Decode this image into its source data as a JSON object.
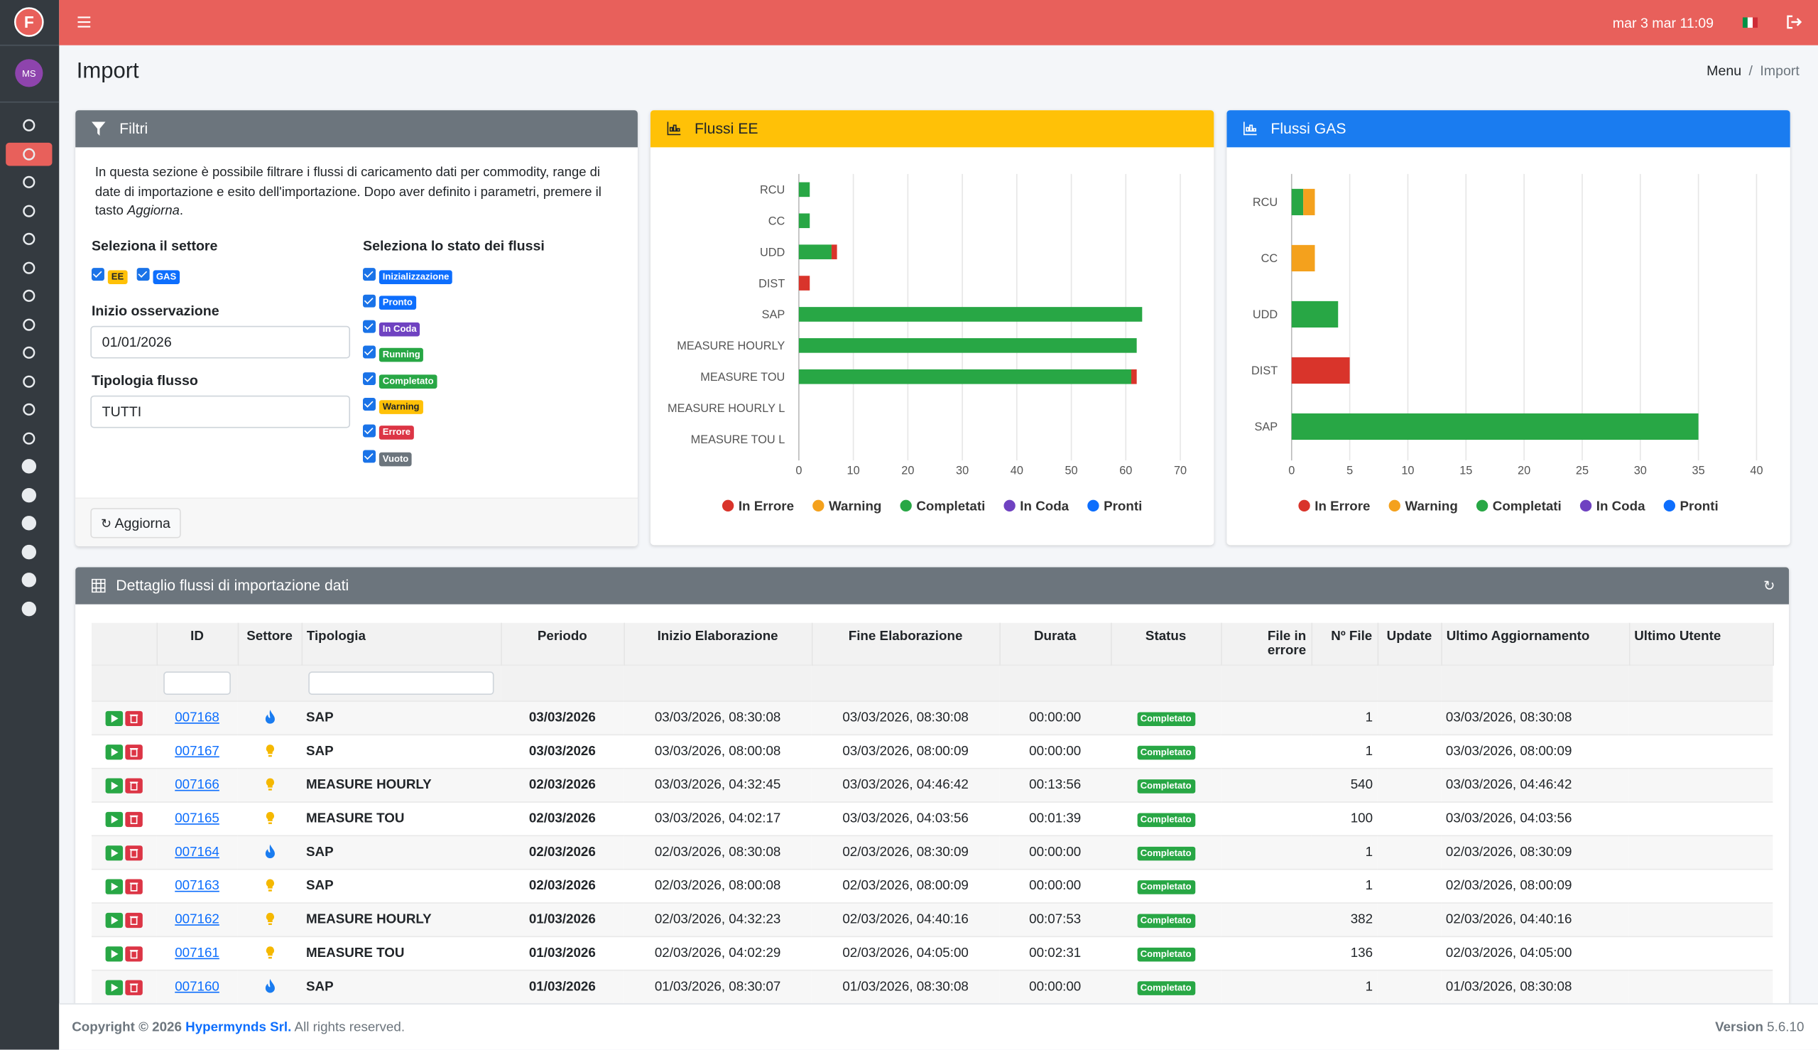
{
  "header": {
    "datetime": "mar 3 mar 11:09",
    "avatar": "MS"
  },
  "page": {
    "title": "Import",
    "breadcrumb": [
      "Menu",
      "Import"
    ]
  },
  "filters": {
    "title": "Filtri",
    "intro": [
      "In questa sezione è possibile filtrare i flussi di caricamento dati per commodity, range di date di importazione e esito dell'importazione. Dopo aver definito i parametri, premere il tasto ",
      "Aggiorna",
      "."
    ],
    "settore_label": "Seleziona il settore",
    "settori": [
      {
        "label": "EE",
        "color": "#ffc107",
        "text_color": "#212529"
      },
      {
        "label": "GAS",
        "color": "#0d6efd",
        "text_color": "#ffffff"
      }
    ],
    "stato_label": "Seleziona lo stato dei flussi",
    "stati": [
      {
        "label": "Inizializzazione",
        "color": "#0d6efd"
      },
      {
        "label": "Pronto",
        "color": "#0d6efd"
      },
      {
        "label": "In Coda",
        "color": "#6f42c1"
      },
      {
        "label": "Running",
        "color": "#28a745"
      },
      {
        "label": "Completato",
        "color": "#28a745"
      },
      {
        "label": "Warning",
        "color": "#ffc107"
      },
      {
        "label": "Errore",
        "color": "#dc3545"
      },
      {
        "label": "Vuoto",
        "color": "#6c757d"
      }
    ],
    "inizio_label": "Inizio osservazione",
    "inizio_value": "01/01/2026",
    "tipologia_label": "Tipologia flusso",
    "tipologia_value": "TUTTI",
    "button": "Aggiorna"
  },
  "chart_data": [
    {
      "type": "bar",
      "orientation": "horizontal",
      "stacked": true,
      "title": "Flussi EE",
      "header_color": "#ffc107",
      "categories": [
        "RCU",
        "CC",
        "UDD",
        "DIST",
        "SAP",
        "MEASURE HOURLY",
        "MEASURE TOU",
        "MEASURE HOURLY L",
        "MEASURE TOU L"
      ],
      "series": [
        {
          "name": "In Errore",
          "color": "#d9342b",
          "values": [
            0,
            0,
            1,
            2,
            0,
            0,
            1,
            0,
            0
          ]
        },
        {
          "name": "Warning",
          "color": "#f4a11d",
          "values": [
            0,
            0,
            0,
            0,
            0,
            0,
            0,
            0,
            0
          ]
        },
        {
          "name": "Completati",
          "color": "#28a745",
          "values": [
            2,
            2,
            6,
            0,
            63,
            62,
            61,
            0,
            0
          ]
        },
        {
          "name": "In Coda",
          "color": "#6f42c1",
          "values": [
            0,
            0,
            0,
            0,
            0,
            0,
            0,
            0,
            0
          ]
        },
        {
          "name": "Pronti",
          "color": "#0d6efd",
          "values": [
            0,
            0,
            0,
            0,
            0,
            0,
            0,
            0,
            0
          ]
        }
      ],
      "xlim": [
        0,
        70
      ],
      "xticks": [
        0,
        10,
        20,
        30,
        40,
        50,
        60,
        70
      ],
      "grid": true,
      "legend": "bottom"
    },
    {
      "type": "bar",
      "orientation": "horizontal",
      "stacked": true,
      "title": "Flussi GAS",
      "header_color": "#1a7cf0",
      "categories": [
        "RCU",
        "CC",
        "UDD",
        "DIST",
        "SAP"
      ],
      "series": [
        {
          "name": "In Errore",
          "color": "#d9342b",
          "values": [
            0,
            0,
            0,
            5,
            0
          ]
        },
        {
          "name": "Warning",
          "color": "#f4a11d",
          "values": [
            1,
            2,
            0,
            0,
            0
          ]
        },
        {
          "name": "Completati",
          "color": "#28a745",
          "values": [
            1,
            0,
            4,
            0,
            35
          ]
        },
        {
          "name": "In Coda",
          "color": "#6f42c1",
          "values": [
            0,
            0,
            0,
            0,
            0
          ]
        },
        {
          "name": "Pronti",
          "color": "#0d6efd",
          "values": [
            0,
            0,
            0,
            0,
            0
          ]
        }
      ],
      "xlim": [
        0,
        40
      ],
      "xticks": [
        0,
        5,
        10,
        15,
        20,
        25,
        30,
        35,
        40
      ],
      "grid": true,
      "legend": "bottom"
    }
  ],
  "table": {
    "title": "Dettaglio flussi di importazione dati",
    "columns": [
      "ID",
      "Settore",
      "Tipologia",
      "Periodo",
      "Inizio Elaborazione",
      "Fine Elaborazione",
      "Durata",
      "Status",
      "File in errore",
      "Nº File",
      "Update",
      "Ultimo Aggiornamento",
      "Ultimo Utente"
    ],
    "rows": [
      {
        "id": "007168",
        "settore": "gas",
        "tipologia": "SAP",
        "periodo": "03/03/2026",
        "inizio": "03/03/2026, 08:30:08",
        "fine": "03/03/2026, 08:30:08",
        "durata": "00:00:00",
        "status": "Completato",
        "n_file": 1,
        "ultimo": "03/03/2026, 08:30:08"
      },
      {
        "id": "007167",
        "settore": "ee",
        "tipologia": "SAP",
        "periodo": "03/03/2026",
        "inizio": "03/03/2026, 08:00:08",
        "fine": "03/03/2026, 08:00:09",
        "durata": "00:00:00",
        "status": "Completato",
        "n_file": 1,
        "ultimo": "03/03/2026, 08:00:09"
      },
      {
        "id": "007166",
        "settore": "ee",
        "tipologia": "MEASURE HOURLY",
        "periodo": "02/03/2026",
        "inizio": "03/03/2026, 04:32:45",
        "fine": "03/03/2026, 04:46:42",
        "durata": "00:13:56",
        "status": "Completato",
        "n_file": 540,
        "ultimo": "03/03/2026, 04:46:42"
      },
      {
        "id": "007165",
        "settore": "ee",
        "tipologia": "MEASURE TOU",
        "periodo": "02/03/2026",
        "inizio": "03/03/2026, 04:02:17",
        "fine": "03/03/2026, 04:03:56",
        "durata": "00:01:39",
        "status": "Completato",
        "n_file": 100,
        "ultimo": "03/03/2026, 04:03:56"
      },
      {
        "id": "007164",
        "settore": "gas",
        "tipologia": "SAP",
        "periodo": "02/03/2026",
        "inizio": "02/03/2026, 08:30:08",
        "fine": "02/03/2026, 08:30:09",
        "durata": "00:00:00",
        "status": "Completato",
        "n_file": 1,
        "ultimo": "02/03/2026, 08:30:09"
      },
      {
        "id": "007163",
        "settore": "ee",
        "tipologia": "SAP",
        "periodo": "02/03/2026",
        "inizio": "02/03/2026, 08:00:08",
        "fine": "02/03/2026, 08:00:09",
        "durata": "00:00:00",
        "status": "Completato",
        "n_file": 1,
        "ultimo": "02/03/2026, 08:00:09"
      },
      {
        "id": "007162",
        "settore": "ee",
        "tipologia": "MEASURE HOURLY",
        "periodo": "01/03/2026",
        "inizio": "02/03/2026, 04:32:23",
        "fine": "02/03/2026, 04:40:16",
        "durata": "00:07:53",
        "status": "Completato",
        "n_file": 382,
        "ultimo": "02/03/2026, 04:40:16"
      },
      {
        "id": "007161",
        "settore": "ee",
        "tipologia": "MEASURE TOU",
        "periodo": "01/03/2026",
        "inizio": "02/03/2026, 04:02:29",
        "fine": "02/03/2026, 04:05:00",
        "durata": "00:02:31",
        "status": "Completato",
        "n_file": 136,
        "ultimo": "02/03/2026, 04:05:00"
      },
      {
        "id": "007160",
        "settore": "gas",
        "tipologia": "SAP",
        "periodo": "01/03/2026",
        "inizio": "01/03/2026, 08:30:07",
        "fine": "01/03/2026, 08:30:08",
        "durata": "00:00:00",
        "status": "Completato",
        "n_file": 1,
        "ultimo": "01/03/2026, 08:30:08"
      }
    ]
  },
  "footer": {
    "copyright": "Copyright © 2026 ",
    "company": "Hypermynds Srl.",
    "rights": " All rights reserved.",
    "version_label": "Version",
    "version": "5.6.10"
  }
}
